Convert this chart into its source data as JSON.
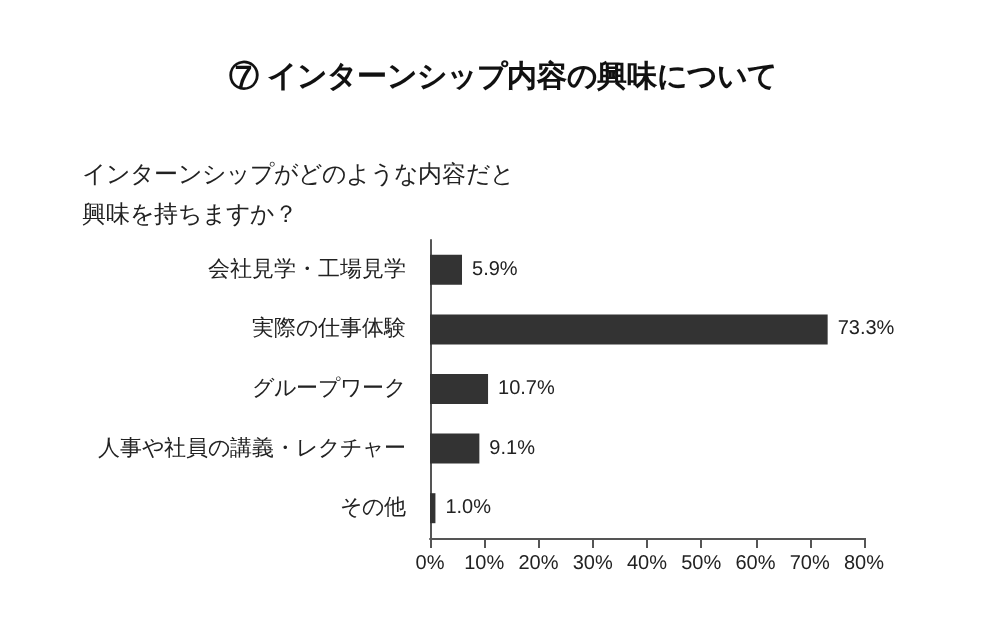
{
  "chart_data": {
    "type": "bar",
    "orientation": "horizontal",
    "title": "⑦ インターンシップ内容の興味について",
    "subtitle": "インターンシップがどのような内容だと興味を持ちますか？",
    "categories": [
      "会社見学・工場見学",
      "実際の仕事体験",
      "グループワーク",
      "人事や社員の講義・レクチャー",
      "その他"
    ],
    "values": [
      5.9,
      73.3,
      10.7,
      9.1,
      1.0
    ],
    "value_labels": [
      "5.9%",
      "73.3%",
      "10.7%",
      "9.1%",
      "1.0%"
    ],
    "color": "#333333",
    "xlim": [
      0,
      80
    ],
    "xticks": [
      {
        "value": 0,
        "label": "0%"
      },
      {
        "value": 10,
        "label": "10%"
      },
      {
        "value": 20,
        "label": "20%"
      },
      {
        "value": 30,
        "label": "30%"
      },
      {
        "value": 40,
        "label": "40%"
      },
      {
        "value": 50,
        "label": "50%"
      },
      {
        "value": 60,
        "label": "60%"
      },
      {
        "value": 70,
        "label": "70%"
      },
      {
        "value": 80,
        "label": "80%"
      }
    ],
    "grid": false
  }
}
